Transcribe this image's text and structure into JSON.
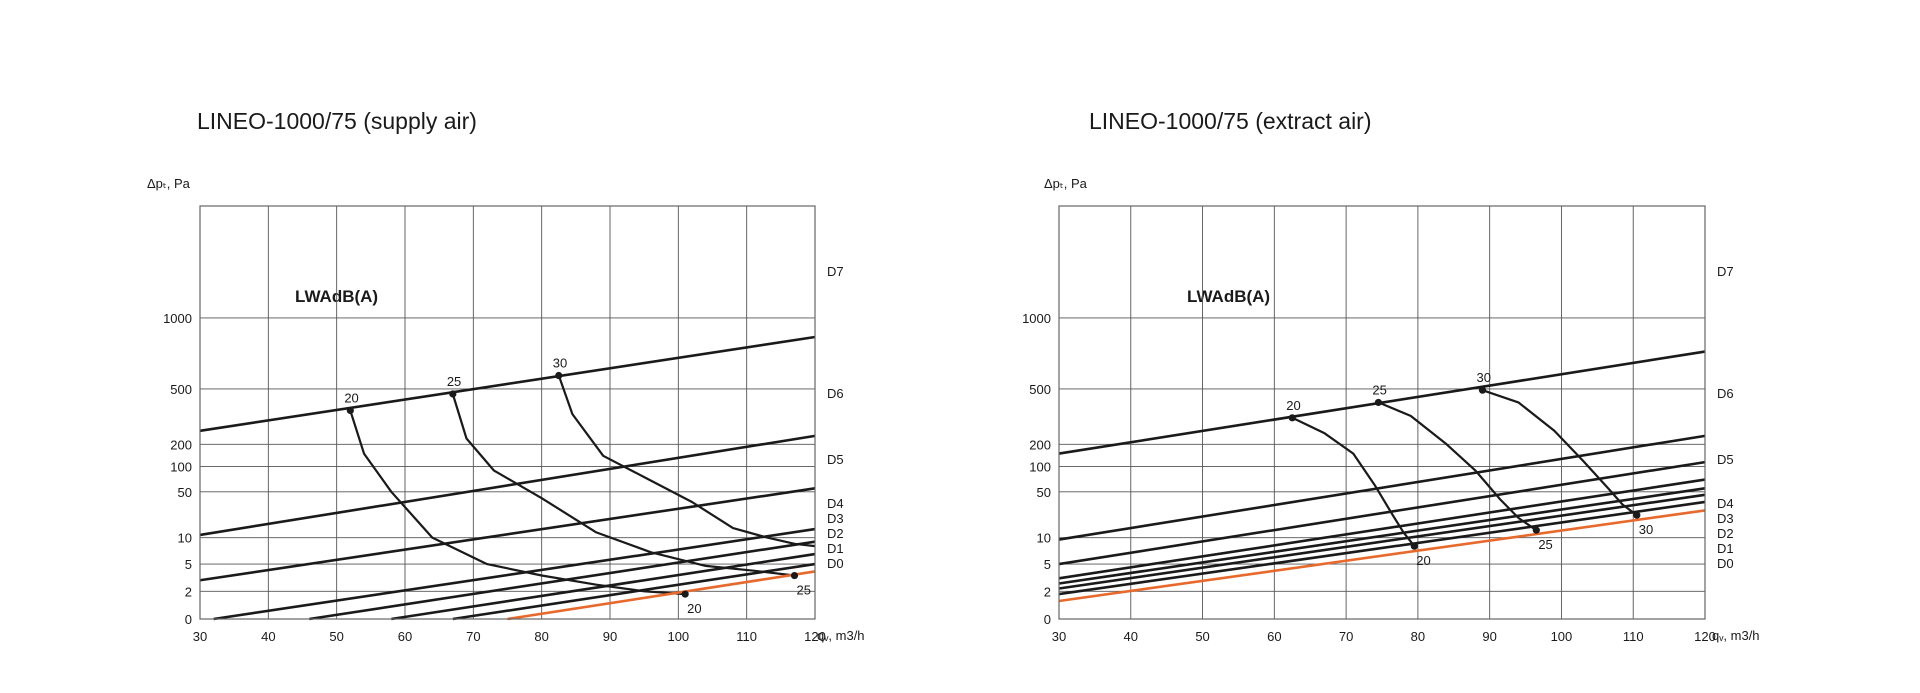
{
  "chart_data": [
    {
      "type": "line",
      "title": "LINEO-1000/75 (supply air)",
      "xlabel": "qᵥ, m3/h",
      "ylabel": "Δpₜ, Pa",
      "annotation": "LWAdB(A)",
      "xlim": [
        30,
        120
      ],
      "x_ticks": [
        30,
        40,
        50,
        60,
        70,
        80,
        90,
        100,
        110,
        120
      ],
      "y_ticks": [
        0,
        2,
        5,
        10,
        50,
        100,
        200,
        500,
        1000
      ],
      "accent_color": "#e8692c",
      "line_color": "#1a1a1a",
      "series": [
        {
          "name": "D7",
          "x": [
            30,
            120
          ],
          "y": [
            250,
            830
          ]
        },
        {
          "name": "D6",
          "x": [
            30,
            120
          ],
          "y": [
            11,
            230
          ]
        },
        {
          "name": "D5",
          "x": [
            30,
            120
          ],
          "y": [
            2.9,
            55
          ]
        },
        {
          "name": "D4",
          "x": [
            32,
            120
          ],
          "y": [
            0,
            13.5
          ]
        },
        {
          "name": "D3",
          "x": [
            46,
            120
          ],
          "y": [
            0,
            9
          ]
        },
        {
          "name": "D2",
          "x": [
            58,
            120
          ],
          "y": [
            0,
            6.5
          ]
        },
        {
          "name": "D1",
          "x": [
            67,
            120
          ],
          "y": [
            0,
            5
          ]
        },
        {
          "name": "D0",
          "x": [
            75,
            120
          ],
          "y": [
            0,
            3.9
          ]
        }
      ],
      "noise_curves": [
        {
          "label": "20",
          "x": [
            52,
            54,
            58,
            64,
            72,
            80,
            88,
            95,
            101
          ],
          "y": [
            350,
            150,
            50,
            10,
            5,
            3.4,
            2.5,
            2,
            1.8
          ]
        },
        {
          "name_unused": "",
          "label": "25",
          "x": [
            67,
            69,
            73,
            80,
            88,
            96,
            104,
            111,
            117
          ],
          "y": [
            460,
            220,
            90,
            40,
            12,
            6.8,
            4.7,
            4,
            3.4
          ]
        },
        {
          "label": "30",
          "x": [
            82.5,
            84.5,
            89,
            95,
            102,
            108,
            113,
            117,
            120
          ],
          "y": [
            570,
            330,
            140,
            75,
            35,
            14,
            10,
            8.5,
            8
          ]
        }
      ],
      "noise_points": [
        {
          "label": "20",
          "x": 52,
          "y": 350
        },
        {
          "label": "25",
          "x": 67,
          "y": 460
        },
        {
          "label": "30",
          "x": 82.5,
          "y": 570
        },
        {
          "label": "20",
          "x": 101,
          "y": 1.8
        },
        {
          "label": "25",
          "x": 117,
          "y": 3.4
        }
      ]
    },
    {
      "type": "line",
      "title": "LINEO-1000/75 (extract air)",
      "xlabel": "qᵥ, m3/h",
      "ylabel": "Δpₜ, Pa",
      "annotation": "LWAdB(A)",
      "xlim": [
        30,
        120
      ],
      "x_ticks": [
        30,
        40,
        50,
        60,
        70,
        80,
        90,
        100,
        110,
        120
      ],
      "y_ticks": [
        0,
        2,
        5,
        10,
        50,
        100,
        200,
        500,
        1000
      ],
      "accent_color": "#e8692c",
      "line_color": "#1a1a1a",
      "series": [
        {
          "name": "D7",
          "x": [
            30,
            120
          ],
          "y": [
            150,
            720
          ]
        },
        {
          "name": "D6",
          "x": [
            30,
            120
          ],
          "y": [
            9.5,
            230
          ]
        },
        {
          "name": "D5",
          "x": [
            30,
            120
          ],
          "y": [
            5,
            115
          ]
        },
        {
          "name": "D4",
          "x": [
            30,
            120
          ],
          "y": [
            3.1,
            70
          ]
        },
        {
          "name": "D3",
          "x": [
            30,
            120
          ],
          "y": [
            2.6,
            55
          ]
        },
        {
          "name": "D2",
          "x": [
            30,
            120
          ],
          "y": [
            2.2,
            45
          ]
        },
        {
          "name": "D1",
          "x": [
            30,
            120
          ],
          "y": [
            1.8,
            35
          ]
        },
        {
          "name": "D0",
          "x": [
            30,
            120
          ],
          "y": [
            1.3,
            26
          ]
        }
      ],
      "noise_curves": [
        {
          "label": "20",
          "x": [
            62.5,
            67,
            71,
            74,
            76.5,
            78,
            79.5
          ],
          "y": [
            310,
            240,
            150,
            60,
            22,
            12,
            8
          ]
        },
        {
          "label": "25",
          "x": [
            74.5,
            79,
            84,
            88,
            91.5,
            94,
            96.5
          ],
          "y": [
            400,
            320,
            200,
            90,
            38,
            20,
            13
          ]
        },
        {
          "label": "30",
          "x": [
            89,
            94,
            99,
            103,
            106.5,
            108.5,
            110.5
          ],
          "y": [
            490,
            400,
            250,
            120,
            55,
            32,
            22
          ]
        }
      ],
      "noise_points": [
        {
          "label": "20",
          "x": 62.5,
          "y": 310
        },
        {
          "label": "25",
          "x": 74.5,
          "y": 400
        },
        {
          "label": "30",
          "x": 89,
          "y": 490
        },
        {
          "label": "20",
          "x": 79.5,
          "y": 8
        },
        {
          "label": "25",
          "x": 96.5,
          "y": 13
        },
        {
          "label": "30",
          "x": 110.5,
          "y": 22
        }
      ]
    }
  ]
}
